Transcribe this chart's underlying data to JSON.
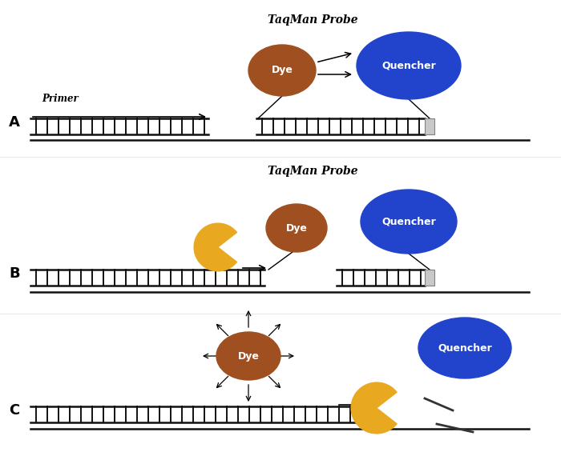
{
  "background_color": "#ffffff",
  "title_A": "TaqMan Probe",
  "title_B": "TaqMan Probe",
  "label_A": "A",
  "label_B": "B",
  "label_C": "C",
  "primer_label": "Primer",
  "dye_color": "#A0522D",
  "quencher_color": "#2244CC",
  "pacman_color": "#E8A820",
  "dna_color": "#111111"
}
